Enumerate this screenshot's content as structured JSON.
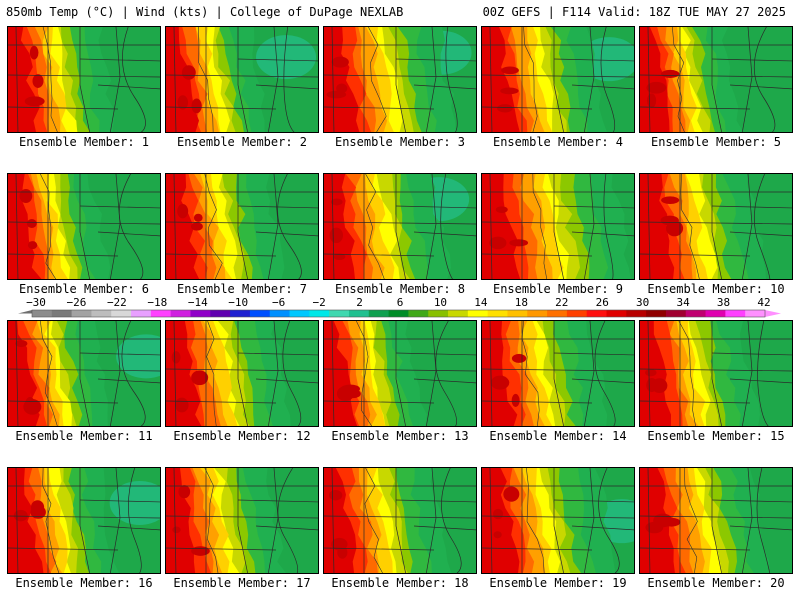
{
  "header": {
    "left": "850mb Temp (°C) | Wind (kts) | College of DuPage NEXLAB",
    "right": "00Z GEFS | F114 Valid: 18Z TUE MAY 27 2025"
  },
  "members": [
    {
      "label": "Ensemble Member: 1",
      "warm": 0.38
    },
    {
      "label": "Ensemble Member: 2",
      "warm": 0.35
    },
    {
      "label": "Ensemble Member: 3",
      "warm": 0.48
    },
    {
      "label": "Ensemble Member: 4",
      "warm": 0.45
    },
    {
      "label": "Ensemble Member: 5",
      "warm": 0.35
    },
    {
      "label": "Ensemble Member: 6",
      "warm": 0.35
    },
    {
      "label": "Ensemble Member: 7",
      "warm": 0.42
    },
    {
      "label": "Ensemble Member: 8",
      "warm": 0.45
    },
    {
      "label": "Ensemble Member: 9",
      "warm": 0.55
    },
    {
      "label": "Ensemble Member: 10",
      "warm": 0.45
    },
    {
      "label": "Ensemble Member: 11",
      "warm": 0.35
    },
    {
      "label": "Ensemble Member: 12",
      "warm": 0.45
    },
    {
      "label": "Ensemble Member: 13",
      "warm": 0.35
    },
    {
      "label": "Ensemble Member: 14",
      "warm": 0.45
    },
    {
      "label": "Ensemble Member: 15",
      "warm": 0.42
    },
    {
      "label": "Ensemble Member: 16",
      "warm": 0.38
    },
    {
      "label": "Ensemble Member: 17",
      "warm": 0.42
    },
    {
      "label": "Ensemble Member: 18",
      "warm": 0.45
    },
    {
      "label": "Ensemble Member: 19",
      "warm": 0.48
    },
    {
      "label": "Ensemble Member: 20",
      "warm": 0.48
    }
  ],
  "colorbar": {
    "ticks": [
      "-30",
      "-26",
      "-22",
      "-18",
      "-14",
      "-10",
      "-6",
      "-2",
      "2",
      "6",
      "10",
      "14",
      "18",
      "22",
      "26",
      "30",
      "34",
      "38",
      "42"
    ],
    "colors": [
      "#8c8c8c",
      "#7a7a7a",
      "#a3a3a3",
      "#bdbdbd",
      "#d8d8d8",
      "#e8a0ff",
      "#ff40ff",
      "#d020e0",
      "#9000c8",
      "#6000b0",
      "#2020d0",
      "#0050ff",
      "#0090ff",
      "#00c8ff",
      "#00e8e8",
      "#40d8b0",
      "#20c090",
      "#10a050",
      "#008c28",
      "#40a818",
      "#88c000",
      "#c8d800",
      "#ffff00",
      "#ffe000",
      "#ffc000",
      "#ff9800",
      "#ff7000",
      "#ff4000",
      "#ff1010",
      "#e00000",
      "#b80000",
      "#900000",
      "#a00030",
      "#c00070",
      "#e000b0",
      "#ff40ff",
      "#ff90ff"
    ]
  }
}
